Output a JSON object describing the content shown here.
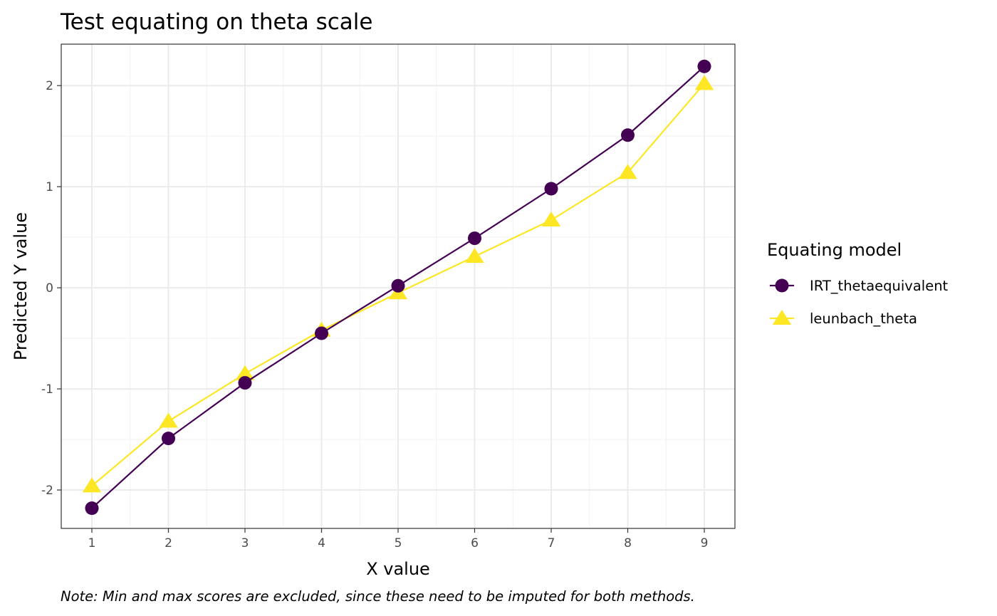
{
  "chart_data": {
    "type": "line",
    "title": "Test equating on theta scale",
    "xlabel": "X value",
    "ylabel": "Predicted Y value",
    "caption": "Note: Min and max scores are excluded, since these need to be imputed for both methods.",
    "x": [
      1,
      2,
      3,
      4,
      5,
      6,
      7,
      8,
      9
    ],
    "xlim": [
      0.6,
      9.4
    ],
    "ylim": [
      -2.38,
      2.41
    ],
    "xticks": [
      1,
      2,
      3,
      4,
      5,
      6,
      7,
      8,
      9
    ],
    "yticks": [
      -2,
      -1,
      0,
      1,
      2
    ],
    "ytick_labels": [
      "-2",
      "-1",
      "0",
      "1",
      "2"
    ],
    "grid": true,
    "legend": {
      "title": "Equating model",
      "placement": "right"
    },
    "series": [
      {
        "name": "IRT_thetaequivalent",
        "color": "#440154",
        "marker": "circle",
        "values": [
          -2.18,
          -1.49,
          -0.94,
          -0.45,
          0.02,
          0.49,
          0.98,
          1.51,
          2.19
        ]
      },
      {
        "name": "leunbach_theta",
        "color": "#FDE725",
        "marker": "triangle",
        "values": [
          -1.96,
          -1.32,
          -0.85,
          -0.42,
          -0.05,
          0.31,
          0.67,
          1.14,
          2.02
        ]
      }
    ]
  }
}
